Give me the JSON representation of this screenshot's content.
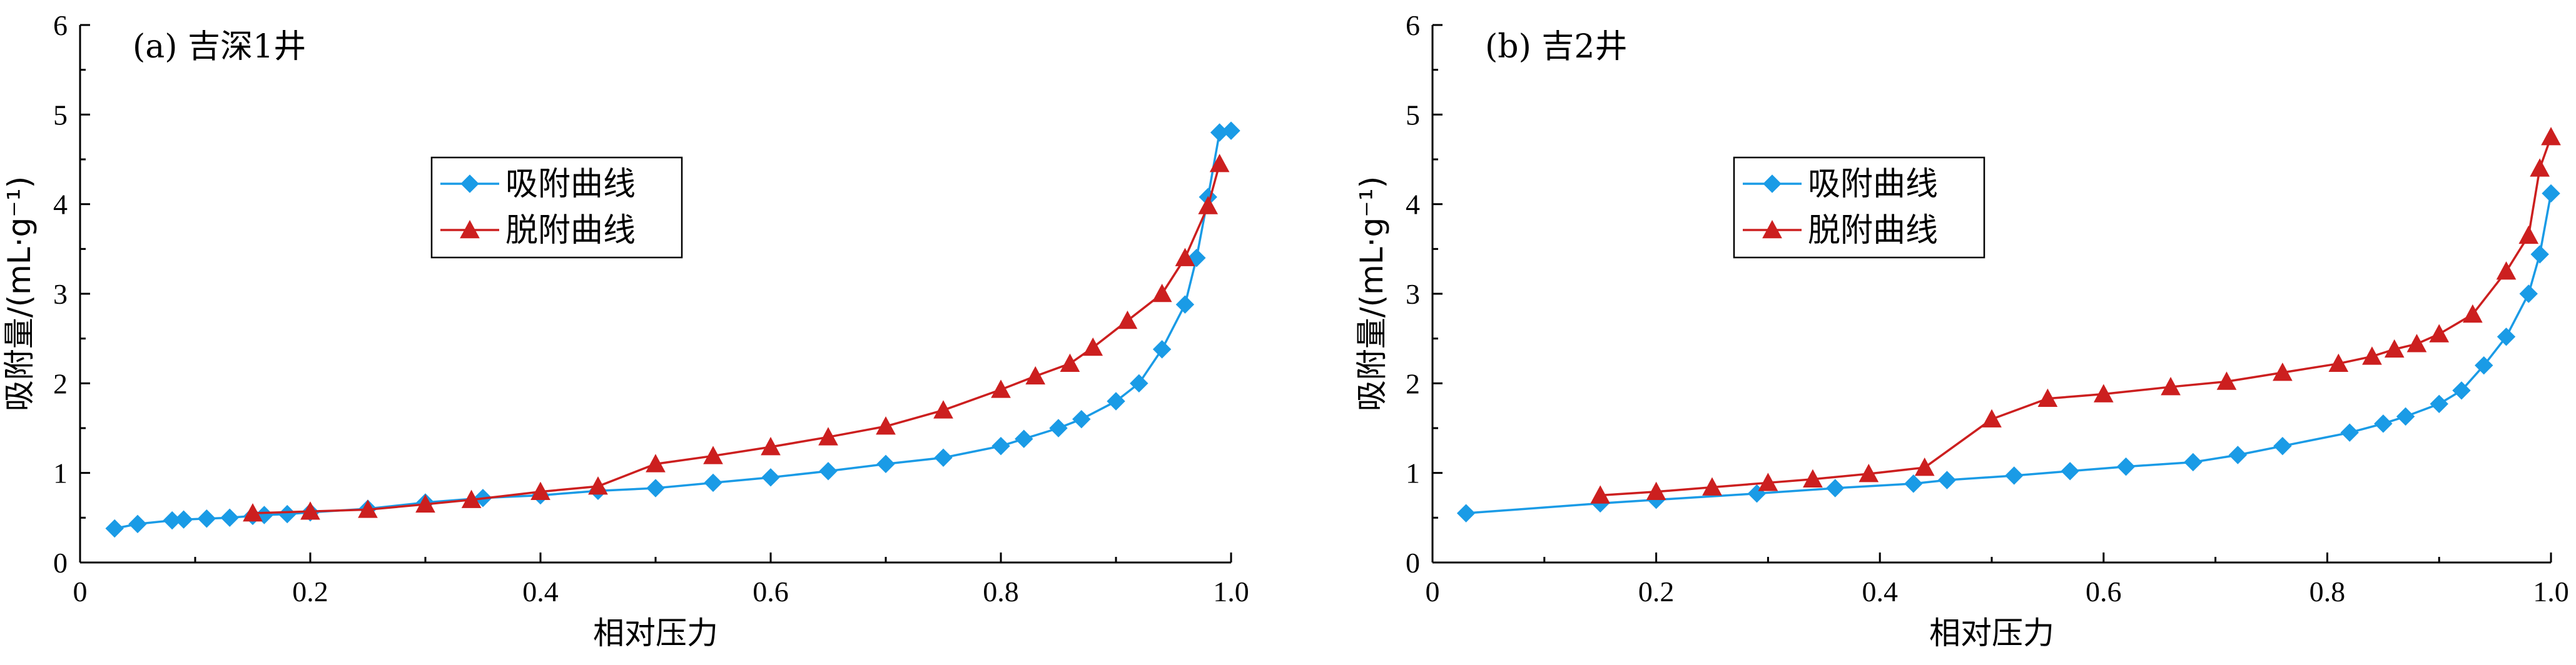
{
  "chart_data": [
    {
      "type": "line",
      "title": "(a) 吉深1井",
      "xlabel": "相对压力",
      "ylabel": "吸附量/(mL·g⁻¹)",
      "xlim": [
        0,
        1.0
      ],
      "ylim": [
        0,
        6
      ],
      "xticks": [
        "0",
        "0.2",
        "0.4",
        "0.6",
        "0.8",
        "1.0"
      ],
      "yticks": [
        "0",
        "1",
        "2",
        "3",
        "4",
        "5",
        "6"
      ],
      "legend_position": "upper-center",
      "grid": false,
      "series": [
        {
          "name": "吸附曲线",
          "color": "#1a9be6",
          "marker": "diamond",
          "x": [
            0.03,
            0.05,
            0.08,
            0.09,
            0.11,
            0.13,
            0.15,
            0.16,
            0.18,
            0.2,
            0.25,
            0.3,
            0.35,
            0.4,
            0.45,
            0.5,
            0.55,
            0.6,
            0.65,
            0.7,
            0.75,
            0.8,
            0.82,
            0.85,
            0.87,
            0.9,
            0.92,
            0.94,
            0.96,
            0.97,
            0.98,
            0.99,
            1.0
          ],
          "y": [
            0.38,
            0.43,
            0.47,
            0.48,
            0.49,
            0.5,
            0.52,
            0.53,
            0.54,
            0.56,
            0.6,
            0.67,
            0.72,
            0.75,
            0.8,
            0.83,
            0.89,
            0.95,
            1.02,
            1.1,
            1.17,
            1.3,
            1.38,
            1.5,
            1.6,
            1.8,
            2.0,
            2.38,
            2.88,
            3.4,
            4.08,
            4.8,
            4.82
          ]
        },
        {
          "name": "脱附曲线",
          "color": "#cc1f1f",
          "marker": "triangle",
          "x": [
            0.15,
            0.2,
            0.25,
            0.3,
            0.34,
            0.4,
            0.45,
            0.5,
            0.55,
            0.6,
            0.65,
            0.7,
            0.75,
            0.8,
            0.83,
            0.86,
            0.88,
            0.91,
            0.94,
            0.96,
            0.98,
            0.99
          ],
          "y": [
            0.55,
            0.57,
            0.59,
            0.65,
            0.7,
            0.79,
            0.85,
            1.1,
            1.19,
            1.29,
            1.4,
            1.52,
            1.7,
            1.93,
            2.08,
            2.22,
            2.4,
            2.7,
            3.0,
            3.4,
            3.98,
            4.45
          ]
        }
      ]
    },
    {
      "type": "line",
      "title": "(b) 吉2井",
      "xlabel": "相对压力",
      "ylabel": "吸附量/(mL·g⁻¹)",
      "xlim": [
        0,
        1.0
      ],
      "ylim": [
        0,
        6
      ],
      "xticks": [
        "0",
        "0.2",
        "0.4",
        "0.6",
        "0.8",
        "1.0"
      ],
      "yticks": [
        "0",
        "1",
        "2",
        "3",
        "4",
        "5",
        "6"
      ],
      "legend_position": "upper-center",
      "grid": false,
      "series": [
        {
          "name": "吸附曲线",
          "color": "#1a9be6",
          "marker": "diamond",
          "x": [
            0.03,
            0.15,
            0.2,
            0.29,
            0.36,
            0.43,
            0.46,
            0.52,
            0.57,
            0.62,
            0.68,
            0.72,
            0.76,
            0.82,
            0.85,
            0.87,
            0.9,
            0.92,
            0.94,
            0.96,
            0.98,
            0.99,
            1.0
          ],
          "y": [
            0.55,
            0.66,
            0.7,
            0.77,
            0.83,
            0.88,
            0.92,
            0.97,
            1.02,
            1.07,
            1.12,
            1.2,
            1.3,
            1.45,
            1.55,
            1.63,
            1.77,
            1.92,
            2.2,
            2.52,
            3.0,
            3.44,
            4.12
          ]
        },
        {
          "name": "脱附曲线",
          "color": "#cc1f1f",
          "marker": "triangle",
          "x": [
            0.15,
            0.2,
            0.25,
            0.3,
            0.34,
            0.39,
            0.44,
            0.5,
            0.55,
            0.6,
            0.66,
            0.71,
            0.76,
            0.81,
            0.84,
            0.86,
            0.88,
            0.9,
            0.93,
            0.96,
            0.98,
            0.99,
            1.0
          ],
          "y": [
            0.75,
            0.79,
            0.84,
            0.89,
            0.93,
            0.99,
            1.06,
            1.6,
            1.83,
            1.88,
            1.96,
            2.02,
            2.12,
            2.22,
            2.3,
            2.38,
            2.44,
            2.55,
            2.77,
            3.25,
            3.65,
            4.4,
            4.75
          ]
        }
      ]
    }
  ]
}
